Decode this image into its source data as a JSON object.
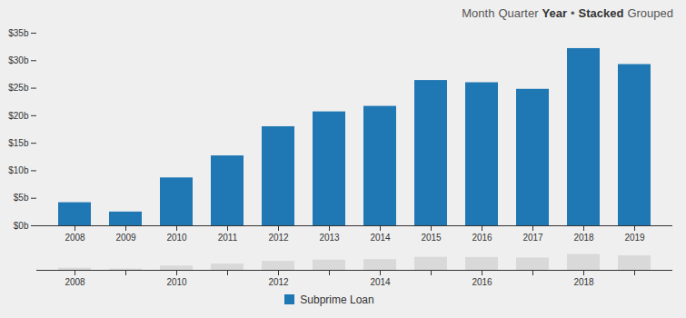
{
  "controls": {
    "period": {
      "options": [
        "Month",
        "Quarter",
        "Year"
      ],
      "selected": "Year"
    },
    "separator": "•",
    "mode": {
      "options": [
        "Stacked",
        "Grouped"
      ],
      "selected": "Stacked"
    }
  },
  "chart_data": [
    {
      "type": "bar",
      "categories": [
        "2008",
        "2009",
        "2010",
        "2011",
        "2012",
        "2013",
        "2014",
        "2015",
        "2016",
        "2017",
        "2018",
        "2019"
      ],
      "series": [
        {
          "name": "Subprime Loan",
          "color": "#1f77b4",
          "values": [
            4.2,
            2.5,
            8.7,
            12.7,
            18.0,
            20.7,
            21.7,
            26.4,
            26.0,
            24.8,
            32.2,
            29.3
          ]
        }
      ],
      "ylim": [
        0,
        35
      ],
      "yticks": [
        {
          "value": 0,
          "label": "$0b"
        },
        {
          "value": 5,
          "label": "$5b"
        },
        {
          "value": 10,
          "label": "$10b"
        },
        {
          "value": 15,
          "label": "$15b"
        },
        {
          "value": 20,
          "label": "$20b"
        },
        {
          "value": 25,
          "label": "$25b"
        },
        {
          "value": 30,
          "label": "$30b"
        },
        {
          "value": 35,
          "label": "$35b"
        }
      ],
      "stacked": true,
      "legend": "bottom"
    },
    {
      "type": "bar",
      "categories": [
        "2008",
        null,
        "2010",
        null,
        "2012",
        null,
        "2014",
        null,
        "2016",
        null,
        "2018",
        null
      ],
      "values": [
        4.2,
        2.5,
        8.7,
        12.7,
        18.0,
        20.7,
        21.7,
        26.4,
        26.0,
        24.8,
        32.2,
        29.3
      ],
      "color": "#d9d9d9",
      "ylim": [
        0,
        35
      ],
      "tick_labels": "x"
    }
  ]
}
